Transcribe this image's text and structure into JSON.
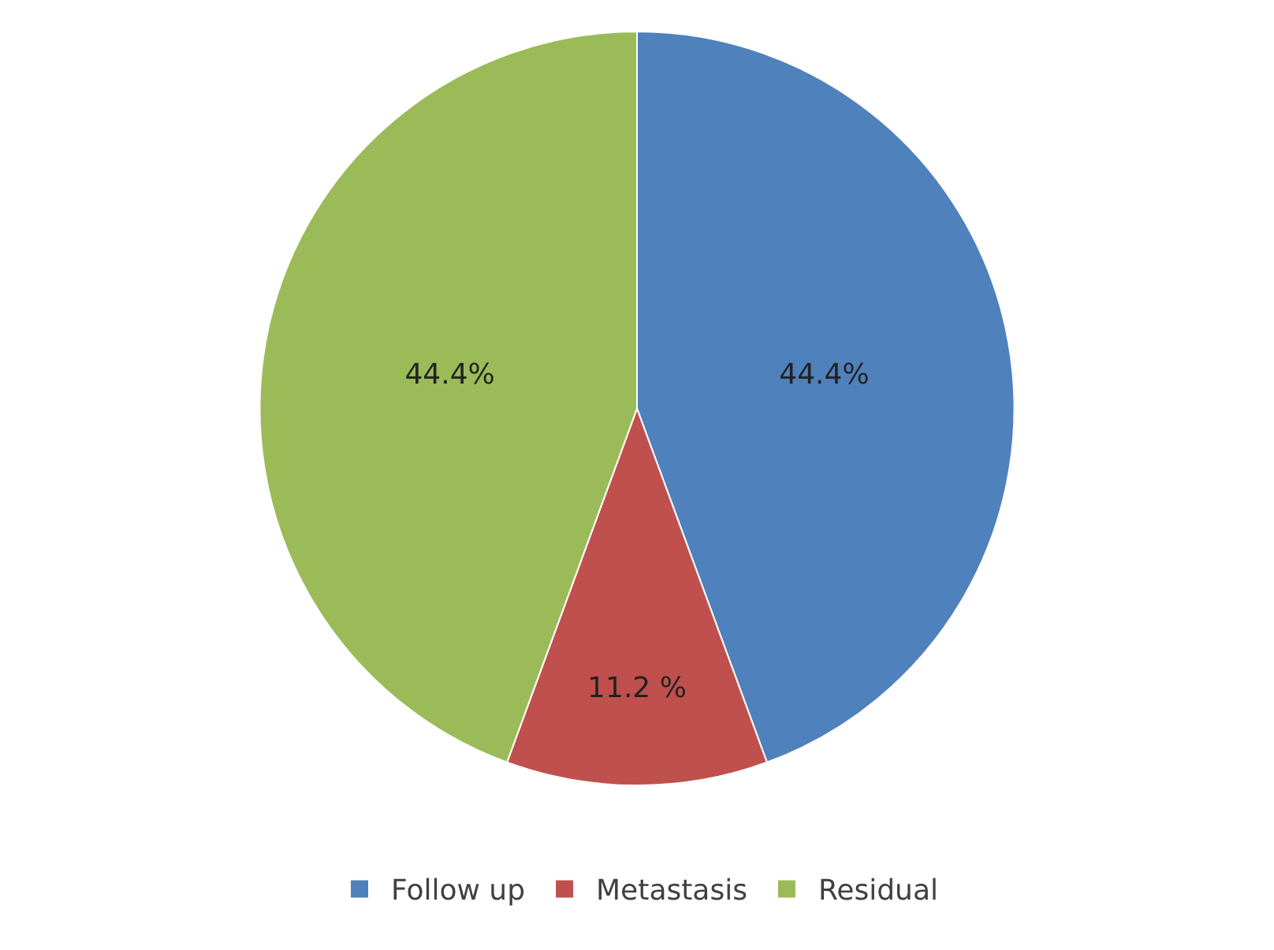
{
  "chart_data": {
    "type": "pie",
    "categories": [
      "Follow up",
      "Metastasis",
      "Residual"
    ],
    "values": [
      44.4,
      11.2,
      44.4
    ],
    "colors": [
      "#4f81bd",
      "#c0504d",
      "#9bbb59"
    ],
    "value_labels": [
      "44.4%",
      "11.2 %",
      "44.4%"
    ],
    "legend": "bottom"
  }
}
